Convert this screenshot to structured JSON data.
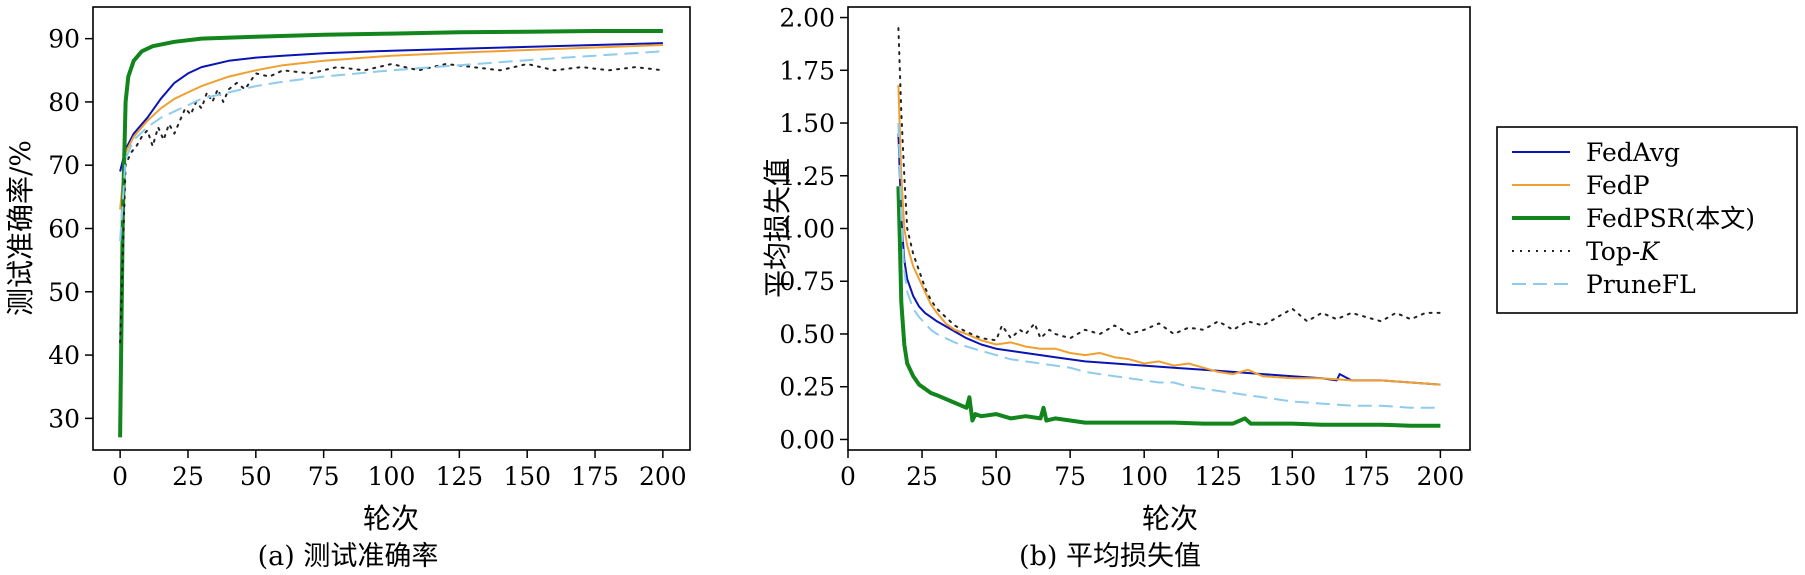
{
  "colors": {
    "fedavg": "#0a14b4",
    "fedp": "#f0a030",
    "fedpsr": "#12851c",
    "topk": "#222222",
    "prunefl": "#8ecbec"
  },
  "chart_data": [
    {
      "type": "line",
      "title": "",
      "caption": "(a) 测试准确率",
      "xlabel": "轮次",
      "ylabel": "测试准确率/%",
      "xlim": [
        -10,
        210
      ],
      "ylim": [
        25,
        95
      ],
      "xticks": [
        0,
        25,
        50,
        75,
        100,
        125,
        150,
        175,
        200
      ],
      "yticks": [
        30,
        40,
        50,
        60,
        70,
        80,
        90
      ],
      "series": [
        {
          "name": "FedAvg",
          "key": "fedavg",
          "style": "solid",
          "width": 2,
          "x": [
            0,
            2,
            5,
            10,
            15,
            20,
            25,
            30,
            40,
            50,
            60,
            75,
            100,
            125,
            150,
            175,
            200
          ],
          "y": [
            69,
            72.5,
            75,
            77.5,
            80.5,
            83,
            84.5,
            85.5,
            86.5,
            87,
            87.3,
            87.7,
            88.1,
            88.4,
            88.7,
            89,
            89.3
          ]
        },
        {
          "name": "FedP",
          "key": "fedp",
          "style": "solid",
          "width": 2,
          "x": [
            0,
            2,
            5,
            10,
            15,
            20,
            25,
            30,
            40,
            50,
            60,
            75,
            100,
            125,
            150,
            175,
            200
          ],
          "y": [
            63,
            72,
            74.5,
            77,
            79,
            80.5,
            81.5,
            82.5,
            84,
            85,
            85.8,
            86.5,
            87.3,
            87.8,
            88.2,
            88.6,
            89
          ]
        },
        {
          "name": "FedPSR(本文)",
          "key": "fedpsr",
          "style": "solid",
          "width": 4,
          "x": [
            0,
            1,
            2,
            3,
            5,
            8,
            12,
            20,
            30,
            50,
            75,
            100,
            125,
            150,
            175,
            200
          ],
          "y": [
            27,
            62,
            80,
            84,
            86.5,
            88,
            88.8,
            89.5,
            90,
            90.3,
            90.6,
            90.8,
            91,
            91.1,
            91.2,
            91.2
          ]
        },
        {
          "name": "Top-K",
          "key": "topk",
          "style": "dotted",
          "width": 2,
          "x": [
            0,
            2,
            4,
            6,
            8,
            10,
            12,
            14,
            16,
            18,
            20,
            22,
            24,
            26,
            28,
            30,
            32,
            34,
            36,
            38,
            40,
            43,
            46,
            50,
            55,
            60,
            70,
            80,
            90,
            100,
            110,
            120,
            130,
            140,
            150,
            160,
            170,
            180,
            190,
            200
          ],
          "y": [
            42,
            70,
            72,
            73,
            74.5,
            75.5,
            73,
            76,
            74,
            76.5,
            75,
            77,
            79,
            78,
            80,
            79,
            81.5,
            80,
            82,
            80,
            82,
            83,
            82,
            84.5,
            84,
            85,
            84.5,
            85.5,
            85,
            86,
            85,
            86,
            85.5,
            85,
            86,
            85,
            85.5,
            85,
            85.5,
            85
          ]
        },
        {
          "name": "PruneFL",
          "key": "prunefl",
          "style": "dashed",
          "width": 2,
          "x": [
            0,
            2,
            5,
            10,
            15,
            20,
            25,
            30,
            40,
            50,
            60,
            75,
            100,
            125,
            150,
            175,
            200
          ],
          "y": [
            58,
            71,
            74,
            76,
            77.5,
            78.5,
            79.5,
            80.5,
            81.5,
            82.5,
            83.2,
            84,
            85,
            85.8,
            86.6,
            87.3,
            88
          ]
        }
      ]
    },
    {
      "type": "line",
      "title": "",
      "caption": "(b) 平均损失值",
      "xlabel": "轮次",
      "ylabel": "平均损失值",
      "xlim": [
        0,
        210
      ],
      "ylim": [
        -0.05,
        2.05
      ],
      "xticks": [
        0,
        25,
        50,
        75,
        100,
        125,
        150,
        175,
        200
      ],
      "xtick_labels": [
        "0",
        "25",
        "50",
        "75",
        "100",
        "125",
        "150",
        "175",
        "200"
      ],
      "yticks": [
        0.0,
        0.25,
        0.5,
        0.75,
        1.0,
        1.25,
        1.5,
        1.75,
        2.0
      ],
      "ytick_labels": [
        "0.00",
        "0.25",
        "0.50",
        "0.75",
        "1.00",
        "1.25",
        "1.50",
        "1.75",
        "2.00"
      ],
      "series": [
        {
          "name": "FedAvg",
          "key": "fedavg",
          "style": "solid",
          "width": 2,
          "x": [
            17,
            18,
            19,
            20,
            22,
            24,
            26,
            28,
            30,
            35,
            40,
            45,
            50,
            60,
            70,
            80,
            90,
            100,
            110,
            120,
            130,
            140,
            150,
            160,
            165,
            166,
            170,
            180,
            190,
            200
          ],
          "y": [
            1.45,
            1.05,
            0.85,
            0.76,
            0.68,
            0.63,
            0.6,
            0.58,
            0.56,
            0.52,
            0.48,
            0.45,
            0.43,
            0.41,
            0.39,
            0.37,
            0.36,
            0.35,
            0.34,
            0.33,
            0.32,
            0.31,
            0.3,
            0.29,
            0.28,
            0.31,
            0.28,
            0.28,
            0.27,
            0.26
          ]
        },
        {
          "name": "FedP",
          "key": "fedp",
          "style": "solid",
          "width": 2,
          "x": [
            17,
            18,
            19,
            20,
            21,
            22,
            24,
            26,
            28,
            30,
            33,
            36,
            40,
            45,
            50,
            55,
            60,
            65,
            70,
            75,
            80,
            85,
            90,
            95,
            100,
            105,
            110,
            115,
            120,
            125,
            130,
            135,
            140,
            150,
            160,
            170,
            180,
            190,
            200
          ],
          "y": [
            1.68,
            1.25,
            1.0,
            0.92,
            0.87,
            0.82,
            0.76,
            0.7,
            0.64,
            0.6,
            0.55,
            0.52,
            0.5,
            0.47,
            0.45,
            0.46,
            0.44,
            0.43,
            0.43,
            0.41,
            0.4,
            0.41,
            0.39,
            0.38,
            0.36,
            0.37,
            0.35,
            0.36,
            0.34,
            0.32,
            0.31,
            0.33,
            0.3,
            0.29,
            0.29,
            0.28,
            0.28,
            0.27,
            0.26
          ]
        },
        {
          "name": "FedPSR(本文)",
          "key": "fedpsr",
          "style": "solid",
          "width": 4,
          "x": [
            17,
            17.5,
            18,
            19,
            20,
            22,
            24,
            26,
            28,
            30,
            35,
            40,
            41,
            42,
            43,
            45,
            50,
            55,
            60,
            65,
            66,
            67,
            70,
            75,
            80,
            90,
            100,
            110,
            120,
            130,
            134,
            136,
            140,
            150,
            160,
            170,
            180,
            190,
            200
          ],
          "y": [
            1.2,
            0.95,
            0.65,
            0.45,
            0.36,
            0.3,
            0.26,
            0.24,
            0.22,
            0.21,
            0.18,
            0.15,
            0.2,
            0.09,
            0.12,
            0.11,
            0.12,
            0.1,
            0.11,
            0.1,
            0.15,
            0.09,
            0.1,
            0.09,
            0.08,
            0.08,
            0.08,
            0.08,
            0.075,
            0.075,
            0.1,
            0.075,
            0.075,
            0.075,
            0.07,
            0.07,
            0.07,
            0.065,
            0.065
          ]
        },
        {
          "name": "Top-K",
          "key": "topk",
          "style": "dotted",
          "width": 2,
          "x": [
            17,
            18,
            19,
            20,
            22,
            24,
            26,
            28,
            30,
            33,
            36,
            40,
            45,
            50,
            52,
            55,
            58,
            60,
            63,
            65,
            68,
            70,
            75,
            80,
            85,
            90,
            95,
            100,
            105,
            110,
            115,
            120,
            125,
            130,
            135,
            140,
            145,
            150,
            155,
            160,
            165,
            170,
            175,
            180,
            185,
            190,
            195,
            200
          ],
          "y": [
            1.95,
            1.55,
            1.25,
            1.0,
            0.88,
            0.8,
            0.72,
            0.66,
            0.62,
            0.58,
            0.54,
            0.51,
            0.48,
            0.47,
            0.54,
            0.48,
            0.52,
            0.5,
            0.55,
            0.48,
            0.52,
            0.5,
            0.48,
            0.52,
            0.5,
            0.54,
            0.5,
            0.52,
            0.55,
            0.5,
            0.53,
            0.52,
            0.56,
            0.52,
            0.56,
            0.54,
            0.58,
            0.62,
            0.56,
            0.6,
            0.57,
            0.6,
            0.58,
            0.56,
            0.6,
            0.57,
            0.6,
            0.6
          ]
        },
        {
          "name": "PruneFL",
          "key": "prunefl",
          "style": "dashed",
          "width": 2,
          "x": [
            17,
            18,
            19,
            20,
            22,
            24,
            26,
            28,
            30,
            33,
            36,
            40,
            45,
            50,
            55,
            60,
            65,
            70,
            75,
            80,
            85,
            90,
            95,
            100,
            105,
            110,
            115,
            120,
            125,
            130,
            135,
            140,
            145,
            150,
            160,
            170,
            180,
            190,
            200
          ],
          "y": [
            1.5,
            1.05,
            0.8,
            0.7,
            0.62,
            0.58,
            0.55,
            0.52,
            0.5,
            0.48,
            0.46,
            0.44,
            0.42,
            0.4,
            0.38,
            0.37,
            0.36,
            0.35,
            0.34,
            0.32,
            0.31,
            0.3,
            0.29,
            0.28,
            0.27,
            0.27,
            0.25,
            0.24,
            0.23,
            0.22,
            0.21,
            0.2,
            0.19,
            0.18,
            0.17,
            0.16,
            0.16,
            0.15,
            0.15
          ]
        }
      ]
    }
  ],
  "legend": {
    "placement": "right",
    "entries": [
      {
        "label": "FedAvg",
        "key": "fedavg",
        "style": "solid"
      },
      {
        "label": "FedP",
        "key": "fedp",
        "style": "solid"
      },
      {
        "label": "FedPSR(本文)",
        "key": "fedpsr",
        "style": "solid"
      },
      {
        "label": "Top-",
        "label_italic": "K",
        "key": "topk",
        "style": "dotted"
      },
      {
        "label": "PruneFL",
        "key": "prunefl",
        "style": "dashed"
      }
    ]
  }
}
